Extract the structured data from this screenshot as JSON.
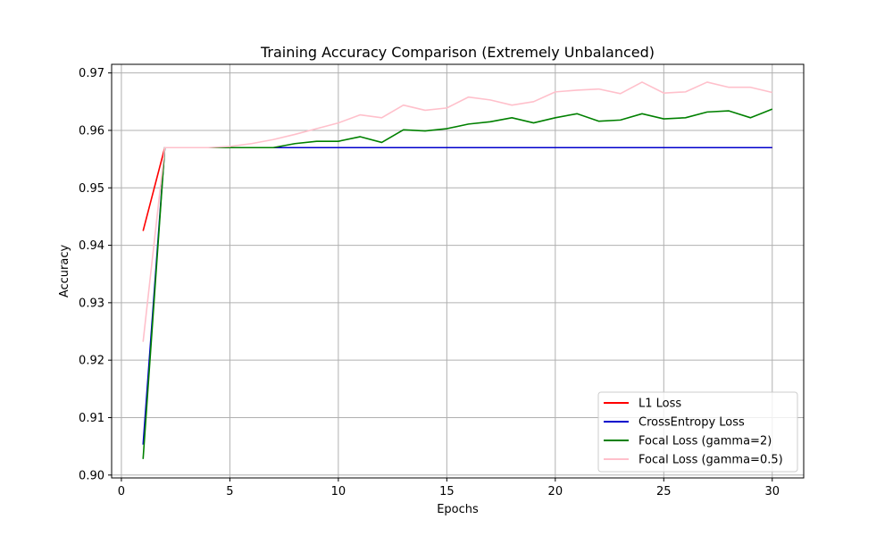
{
  "chart_data": {
    "type": "line",
    "title": "Training Accuracy Comparison (Extremely Unbalanced)",
    "xlabel": "Epochs",
    "ylabel": "Accuracy",
    "xlim": [
      -0.45,
      31.45
    ],
    "ylim": [
      0.8995,
      0.9715
    ],
    "xticks": [
      0,
      5,
      10,
      15,
      20,
      25,
      30
    ],
    "yticks": [
      0.9,
      0.91,
      0.92,
      0.93,
      0.94,
      0.95,
      0.96,
      0.97
    ],
    "xtick_labels": [
      "0",
      "5",
      "10",
      "15",
      "20",
      "25",
      "30"
    ],
    "ytick_labels": [
      "0.90",
      "0.91",
      "0.92",
      "0.93",
      "0.94",
      "0.95",
      "0.96",
      "0.97"
    ],
    "grid": true,
    "legend_position": "lower-right",
    "x": [
      1,
      2,
      3,
      4,
      5,
      6,
      7,
      8,
      9,
      10,
      11,
      12,
      13,
      14,
      15,
      16,
      17,
      18,
      19,
      20,
      21,
      22,
      23,
      24,
      25,
      26,
      27,
      28,
      29,
      30
    ],
    "series": [
      {
        "name": "L1 Loss",
        "color": "#ff0000",
        "values": [
          0.9425,
          0.957,
          0.957,
          0.957,
          0.957,
          0.957,
          0.957,
          0.957,
          0.957,
          0.957,
          0.957,
          0.957,
          0.957,
          0.957,
          0.957,
          0.957,
          0.957,
          0.957,
          0.957,
          0.957,
          0.957,
          0.957,
          0.957,
          0.957,
          0.957,
          0.957,
          0.957,
          0.957,
          0.957,
          0.957
        ]
      },
      {
        "name": "CrossEntropy Loss",
        "color": "#0000cc",
        "values": [
          0.9053,
          0.957,
          0.957,
          0.957,
          0.957,
          0.957,
          0.957,
          0.957,
          0.957,
          0.957,
          0.957,
          0.957,
          0.957,
          0.957,
          0.957,
          0.957,
          0.957,
          0.957,
          0.957,
          0.957,
          0.957,
          0.957,
          0.957,
          0.957,
          0.957,
          0.957,
          0.957,
          0.957,
          0.957,
          0.957
        ]
      },
      {
        "name": "Focal Loss (gamma=2)",
        "color": "#008000",
        "values": [
          0.9028,
          0.957,
          0.957,
          0.957,
          0.957,
          0.957,
          0.957,
          0.9577,
          0.9581,
          0.9581,
          0.9589,
          0.9579,
          0.9601,
          0.9599,
          0.9603,
          0.9611,
          0.9615,
          0.9622,
          0.9613,
          0.9622,
          0.9629,
          0.9616,
          0.9618,
          0.9629,
          0.962,
          0.9622,
          0.9632,
          0.9634,
          0.9622,
          0.9637
        ]
      },
      {
        "name": "Focal Loss (gamma=0.5)",
        "color": "#ffc0cb",
        "values": [
          0.9232,
          0.957,
          0.957,
          0.957,
          0.9572,
          0.9577,
          0.9584,
          0.9593,
          0.9603,
          0.9613,
          0.9627,
          0.9622,
          0.9644,
          0.9635,
          0.9639,
          0.9658,
          0.9653,
          0.9644,
          0.965,
          0.9667,
          0.967,
          0.9672,
          0.9664,
          0.9684,
          0.9665,
          0.9667,
          0.9684,
          0.9675,
          0.9675,
          0.9666
        ]
      }
    ]
  }
}
